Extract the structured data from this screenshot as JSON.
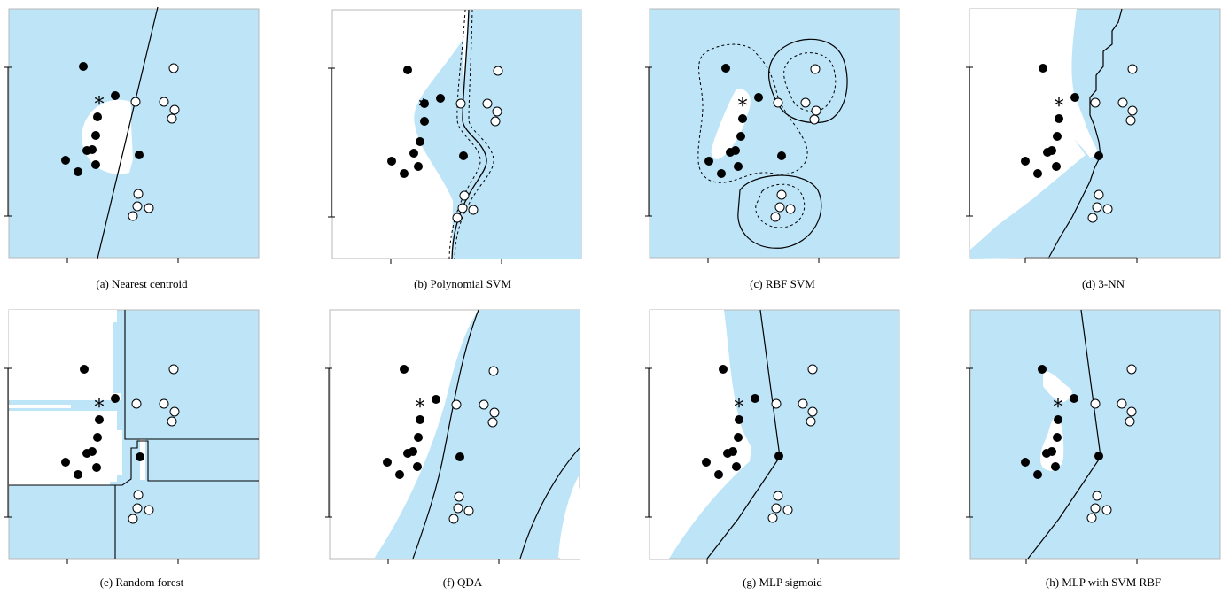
{
  "colors": {
    "region": "#bde4f7",
    "border": "#b8b8b8",
    "line": "#000000",
    "point_fill": "#000000",
    "point_open": "#ffffff"
  },
  "panels": [
    {
      "caption": "(a) Nearest centroid"
    },
    {
      "caption": "(b) Polynomial SVM"
    },
    {
      "caption": "(c) RBF SVM"
    },
    {
      "caption": "(d) 3-NN"
    },
    {
      "caption": "(e) Random forest"
    },
    {
      "caption": "(f) QDA"
    },
    {
      "caption": "(g) MLP sigmoid"
    },
    {
      "caption": "(h) MLP with SVM RBF"
    }
  ],
  "marker": "*"
}
